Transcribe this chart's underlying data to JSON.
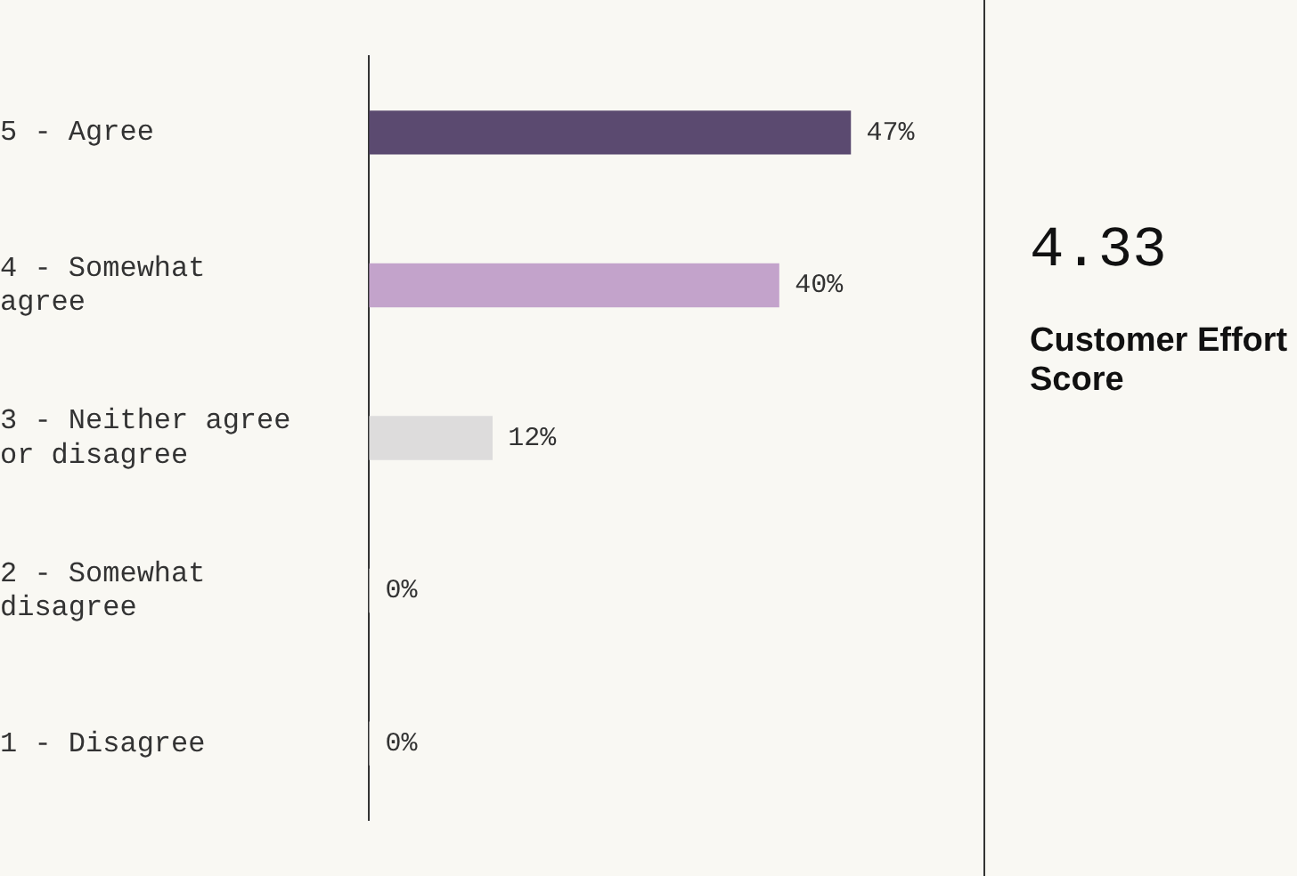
{
  "chart_data": [
    {
      "type": "bar",
      "orientation": "horizontal",
      "categories": [
        "5 - Agree",
        "4 - Somewhat agree",
        "3 - Neither agree or disagree",
        "2 - Somewhat disagree",
        "1 - Disagree"
      ],
      "values": [
        47,
        40,
        12,
        0,
        0
      ],
      "colors": [
        "#5b4a70",
        "#c3a3cb",
        "#dddcdc",
        "#dddcdc",
        "#dddcdc"
      ],
      "value_labels": [
        "47%",
        "40%",
        "12%",
        "0%",
        "0%"
      ]
    },
    {
      "type": "other",
      "annotations": [
        "4.33",
        "Customer Effort Score"
      ]
    }
  ]
}
